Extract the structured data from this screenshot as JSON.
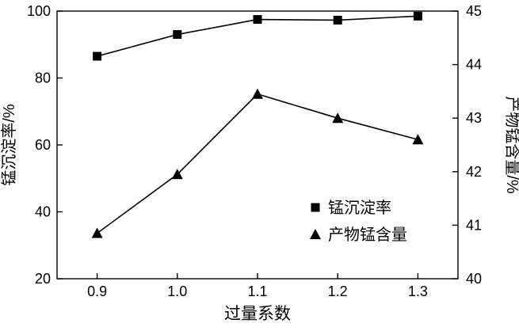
{
  "chart_data": {
    "type": "line",
    "title": "",
    "xlabel": "过量系数",
    "ylabel_left": "锰沉淀率/%",
    "ylabel_right": "产物锰含量/%",
    "x": [
      0.9,
      1.0,
      1.1,
      1.2,
      1.3
    ],
    "x_tick_labels": [
      "0.9",
      "1.0",
      "1.1",
      "1.2",
      "1.3"
    ],
    "xlim": [
      0.85,
      1.35
    ],
    "ylim_left": [
      20,
      100
    ],
    "y_ticks_left": [
      20,
      40,
      60,
      80,
      100
    ],
    "ylim_right": [
      40,
      45
    ],
    "y_ticks_right": [
      40,
      41,
      42,
      43,
      44,
      45
    ],
    "grid": false,
    "legend_position": "inside-right-lower",
    "series": [
      {
        "name": "锰沉淀率",
        "axis": "left",
        "marker": "square",
        "color": "#000000",
        "values": [
          86.5,
          93.0,
          97.5,
          97.3,
          98.5
        ]
      },
      {
        "name": "产物锰含量",
        "axis": "right",
        "marker": "triangle",
        "color": "#000000",
        "values": [
          40.85,
          41.95,
          43.45,
          43.0,
          42.6
        ]
      }
    ]
  }
}
